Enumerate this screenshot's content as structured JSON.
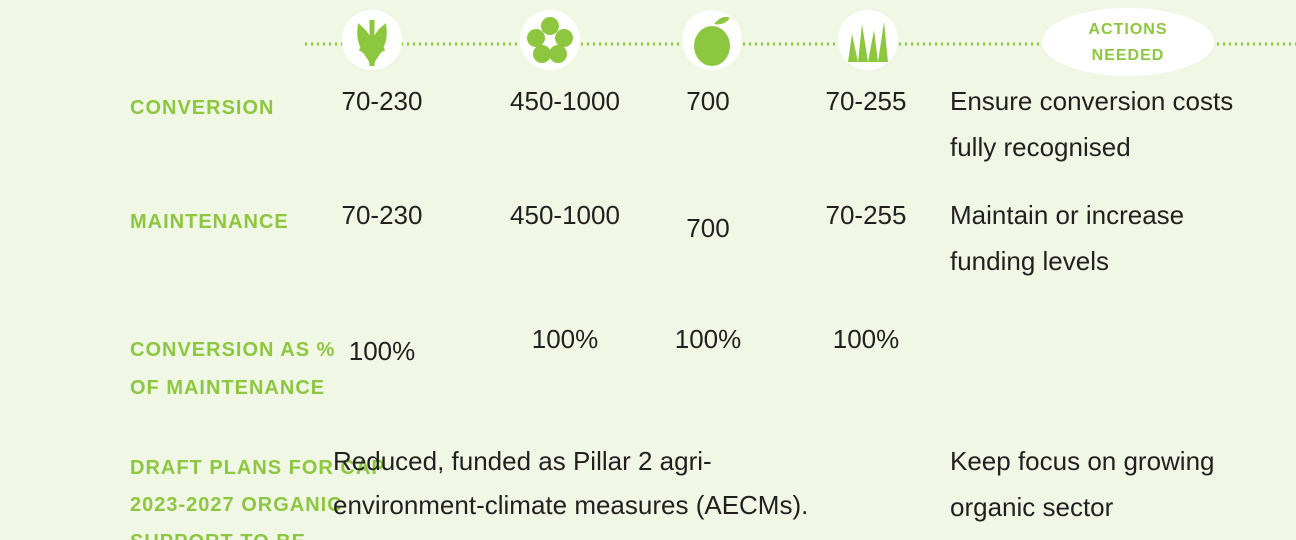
{
  "header": {
    "actions_label": [
      "ACTIONS",
      "NEEDED"
    ]
  },
  "rows": [
    {
      "label": [
        "CONVERSION"
      ],
      "values": [
        "70-230",
        "450-1000",
        "700",
        "70-255"
      ],
      "action": [
        "Ensure conversion costs",
        "fully recognised"
      ]
    },
    {
      "label": [
        "MAINTENANCE"
      ],
      "values": [
        "70-230",
        "450-1000",
        "700",
        "70-255"
      ],
      "action": [
        "Maintain or increase",
        "funding levels"
      ]
    },
    {
      "label": [
        "CONVERSION AS %",
        "OF MAINTENANCE"
      ],
      "values": [
        "100%",
        "100%",
        "100%",
        "100%"
      ]
    },
    {
      "label": [
        "DRAFT PLANS FOR CAP",
        "2023-2027 ORGANIC",
        "SUPPORT TO BE..."
      ],
      "note": [
        "Reduced, funded as Pillar 2 agri-",
        "environment-climate measures (AECMs)."
      ],
      "action": [
        "Keep focus on growing",
        "organic sector"
      ]
    }
  ]
}
